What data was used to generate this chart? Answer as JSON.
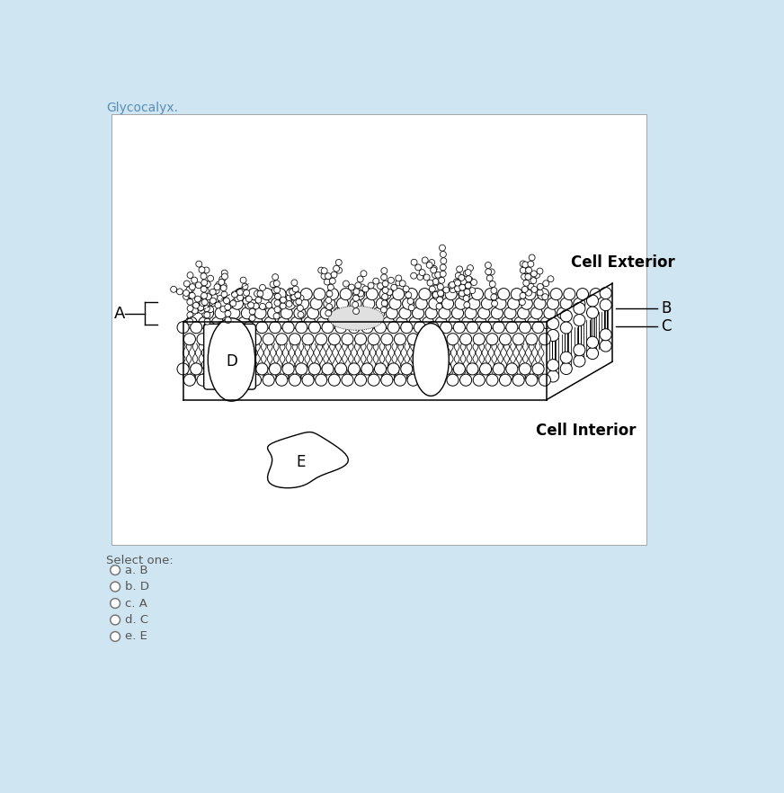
{
  "title": "Glycocalyx.",
  "bg_color": "#cfe5f2",
  "panel_bg": "#ffffff",
  "select_text": "Select one:",
  "options": [
    "a. B",
    "b. D",
    "c. A",
    "d. C",
    "e. E"
  ],
  "label_A": "A",
  "label_B": "B",
  "label_C": "C",
  "label_D": "D",
  "label_E": "E",
  "label_cell_exterior": "Cell Exterior",
  "label_cell_interior": "Cell Interior",
  "title_color": "#5a8db5",
  "text_color": "#444444",
  "select_color": "#555555"
}
